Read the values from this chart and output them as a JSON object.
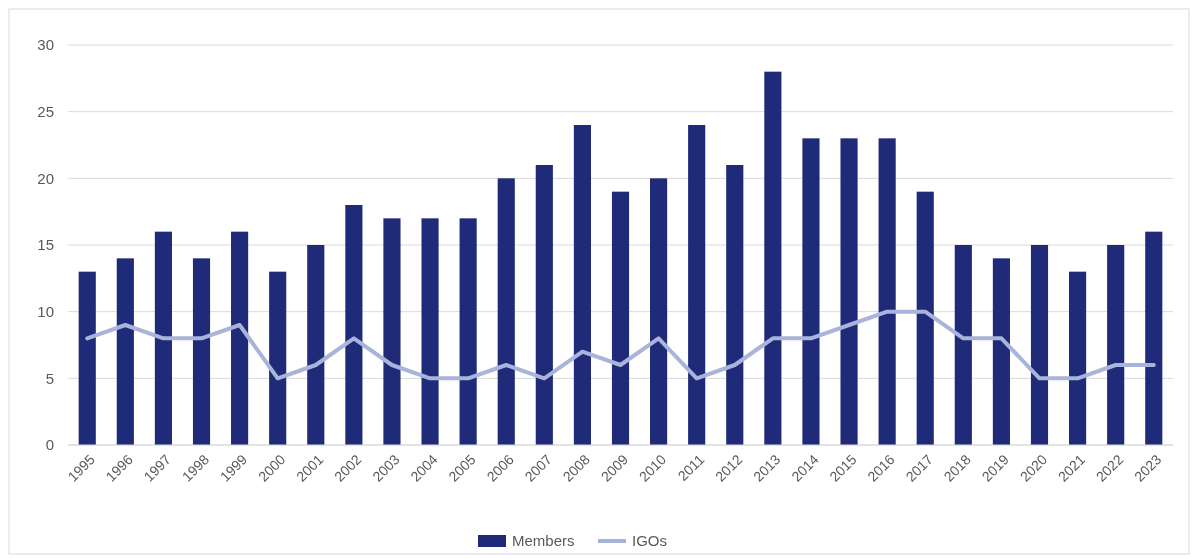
{
  "chart_data": {
    "type": "bar",
    "categories": [
      "1995",
      "1996",
      "1997",
      "1998",
      "1999",
      "2000",
      "2001",
      "2002",
      "2003",
      "2004",
      "2005",
      "2006",
      "2007",
      "2008",
      "2009",
      "2010",
      "2011",
      "2012",
      "2013",
      "2014",
      "2015",
      "2016",
      "2017",
      "2018",
      "2019",
      "2020",
      "2021",
      "2022",
      "2023"
    ],
    "series": [
      {
        "name": "Members",
        "color": "#1f2a78",
        "values": [
          13,
          14,
          16,
          14,
          16,
          13,
          15,
          18,
          17,
          17,
          17,
          20,
          21,
          24,
          19,
          20,
          24,
          21,
          28,
          23,
          23,
          23,
          19,
          15,
          14,
          15,
          13,
          15,
          16
        ]
      },
      {
        "name": "IGOs",
        "type": "line",
        "color": "#a9b4da",
        "values": [
          8,
          9,
          8,
          8,
          9,
          5,
          6,
          8,
          6,
          5,
          5,
          6,
          5,
          7,
          6,
          8,
          5,
          6,
          8,
          8,
          9,
          10,
          10,
          8,
          8,
          5,
          5,
          6,
          6
        ]
      }
    ],
    "ylim": [
      0,
      30
    ],
    "yticks": [
      0,
      5,
      10,
      15,
      20,
      25,
      30
    ],
    "grid": "y",
    "legend": "bottom",
    "marker": "none",
    "line_style": "solid"
  }
}
